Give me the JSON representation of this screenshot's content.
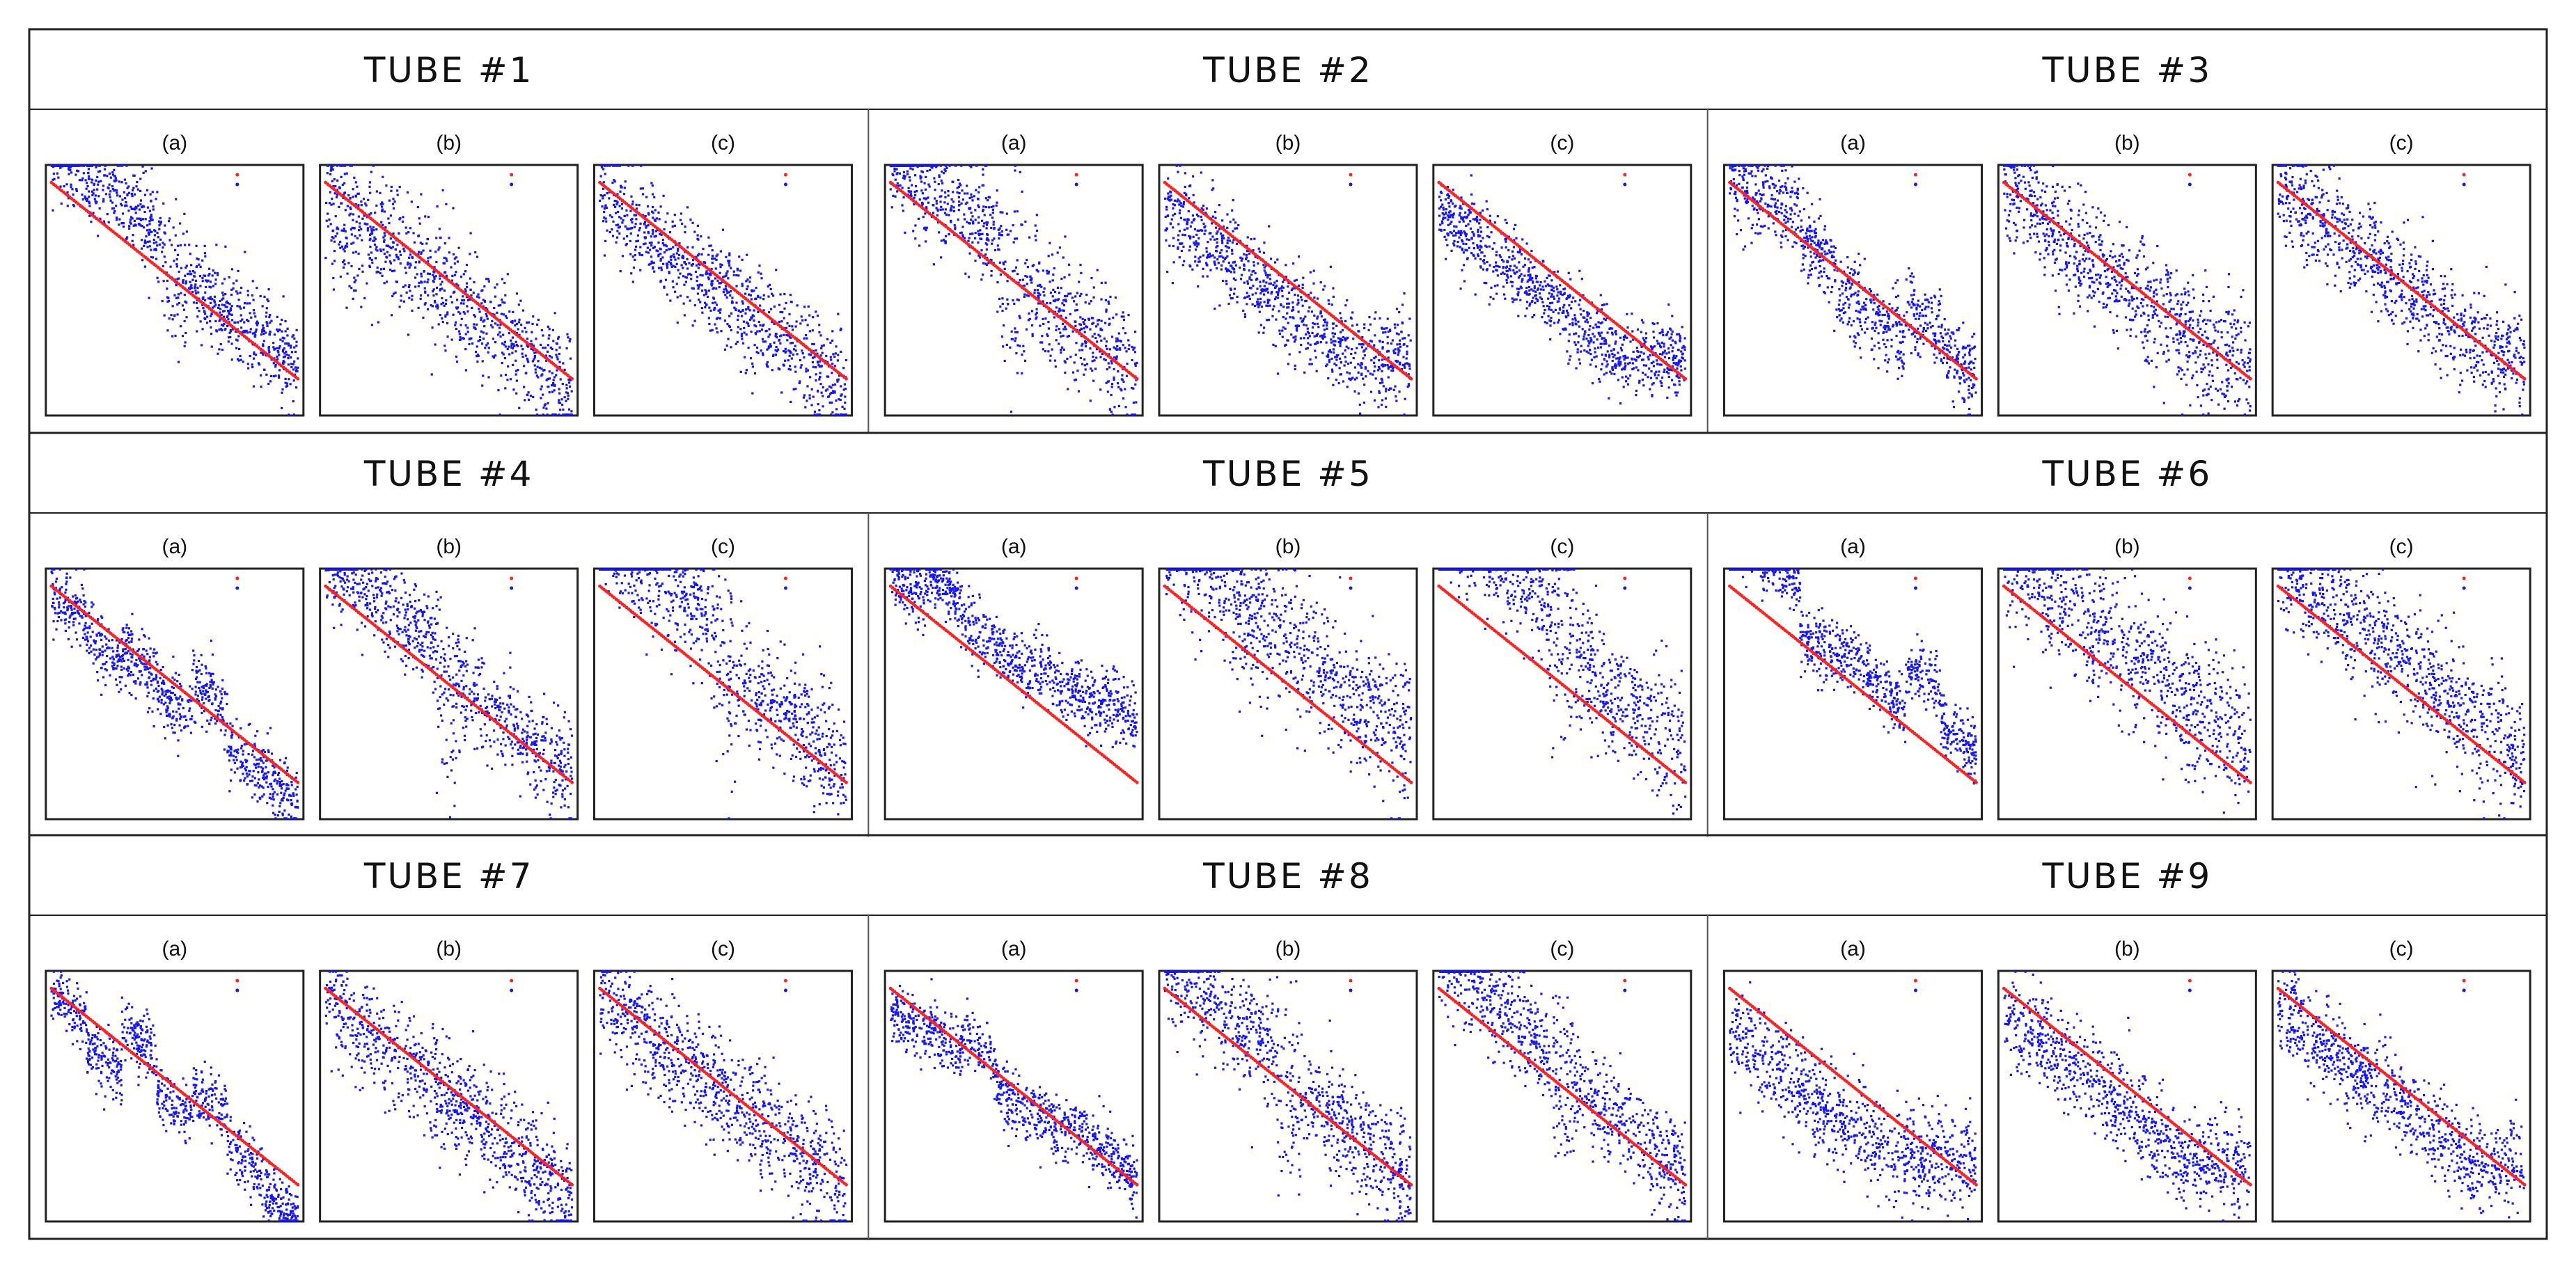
{
  "colors": {
    "reference_line": "#ff2020",
    "predicted_points": "#1414ff",
    "frame": "#222222",
    "divider": "#555555"
  },
  "legend_labels": [
    " ",
    " "
  ],
  "chart_data": [
    {
      "type": "scatter",
      "title": "TUBE #1",
      "panels": [
        {
          "label": "(a)",
          "pattern": "step",
          "offset": 0.08,
          "spread": 0.09,
          "seed": 11
        },
        {
          "label": "(b)",
          "pattern": "cloud",
          "offset": 0.0,
          "spread": 0.13,
          "seed": 12
        },
        {
          "label": "(c)",
          "pattern": "cloud",
          "offset": 0.0,
          "spread": 0.11,
          "seed": 13
        }
      ]
    },
    {
      "type": "scatter",
      "title": "TUBE #2",
      "panels": [
        {
          "label": "(a)",
          "pattern": "step",
          "offset": 0.05,
          "spread": 0.12,
          "seed": 21
        },
        {
          "label": "(b)",
          "pattern": "flatten",
          "offset": -0.05,
          "spread": 0.1,
          "seed": 22
        },
        {
          "label": "(c)",
          "pattern": "flatten",
          "offset": -0.08,
          "spread": 0.08,
          "seed": 23
        }
      ]
    },
    {
      "type": "scatter",
      "title": "TUBE #3",
      "panels": [
        {
          "label": "(a)",
          "pattern": "steps",
          "offset": 0.05,
          "spread": 0.12,
          "seed": 31
        },
        {
          "label": "(b)",
          "pattern": "flatten",
          "offset": 0.02,
          "spread": 0.12,
          "seed": 32
        },
        {
          "label": "(c)",
          "pattern": "flatten",
          "offset": 0.04,
          "spread": 0.11,
          "seed": 33
        }
      ]
    },
    {
      "type": "scatter",
      "title": "TUBE #4",
      "panels": [
        {
          "label": "(a)",
          "pattern": "steps",
          "offset": 0.05,
          "spread": 0.1,
          "seed": 41
        },
        {
          "label": "(b)",
          "pattern": "step",
          "offset": 0.05,
          "spread": 0.1,
          "seed": 42
        },
        {
          "label": "(c)",
          "pattern": "step",
          "offset": 0.15,
          "spread": 0.12,
          "seed": 43
        }
      ]
    },
    {
      "type": "scatter",
      "title": "TUBE #5",
      "panels": [
        {
          "label": "(a)",
          "pattern": "steps",
          "offset": 0.22,
          "spread": 0.1,
          "seed": 51
        },
        {
          "label": "(b)",
          "pattern": "cloud",
          "offset": 0.22,
          "spread": 0.14,
          "seed": 52
        },
        {
          "label": "(c)",
          "pattern": "step",
          "offset": 0.25,
          "spread": 0.13,
          "seed": 53
        }
      ]
    },
    {
      "type": "scatter",
      "title": "TUBE #6",
      "panels": [
        {
          "label": "(a)",
          "pattern": "steps",
          "offset": 0.2,
          "spread": 0.09,
          "seed": 61
        },
        {
          "label": "(b)",
          "pattern": "cloud",
          "offset": 0.18,
          "spread": 0.14,
          "seed": 62
        },
        {
          "label": "(c)",
          "pattern": "cloud",
          "offset": 0.15,
          "spread": 0.13,
          "seed": 63
        }
      ]
    },
    {
      "type": "scatter",
      "title": "TUBE #7",
      "panels": [
        {
          "label": "(a)",
          "pattern": "steps",
          "offset": 0.02,
          "spread": 0.09,
          "seed": 71
        },
        {
          "label": "(b)",
          "pattern": "cloud",
          "offset": 0.0,
          "spread": 0.11,
          "seed": 72
        },
        {
          "label": "(c)",
          "pattern": "cloud",
          "offset": 0.02,
          "spread": 0.11,
          "seed": 73
        }
      ]
    },
    {
      "type": "scatter",
      "title": "TUBE #8",
      "panels": [
        {
          "label": "(a)",
          "pattern": "steps",
          "offset": 0.02,
          "spread": 0.09,
          "seed": 81
        },
        {
          "label": "(b)",
          "pattern": "step",
          "offset": 0.03,
          "spread": 0.11,
          "seed": 82
        },
        {
          "label": "(c)",
          "pattern": "step",
          "offset": 0.06,
          "spread": 0.11,
          "seed": 83
        }
      ]
    },
    {
      "type": "scatter",
      "title": "TUBE #9",
      "panels": [
        {
          "label": "(a)",
          "pattern": "flatten",
          "offset": -0.12,
          "spread": 0.1,
          "seed": 91
        },
        {
          "label": "(b)",
          "pattern": "flatten",
          "offset": -0.05,
          "spread": 0.1,
          "seed": 92
        },
        {
          "label": "(c)",
          "pattern": "flatten",
          "offset": -0.03,
          "spread": 0.09,
          "seed": 93
        }
      ]
    }
  ]
}
